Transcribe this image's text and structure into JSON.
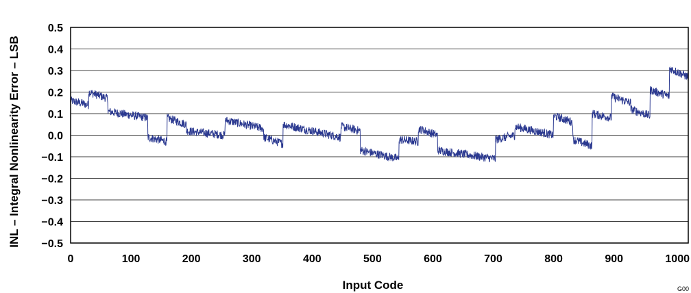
{
  "chart_data": {
    "type": "line",
    "title": "",
    "xlabel": "Input Code",
    "ylabel": "INL – Integral Nonlinearity Error – LSB",
    "xlim": [
      0,
      1023
    ],
    "ylim": [
      -0.5,
      0.5
    ],
    "xticks": [
      0,
      100,
      200,
      300,
      400,
      500,
      600,
      700,
      800,
      900,
      1000
    ],
    "xtick_labels": [
      "0",
      "100",
      "200",
      "300",
      "400",
      "500",
      "600",
      "700",
      "800",
      "900",
      "1000"
    ],
    "yticks": [
      -0.5,
      -0.4,
      -0.3,
      -0.2,
      -0.1,
      0.0,
      0.1,
      0.2,
      0.3,
      0.4,
      0.5
    ],
    "ytick_labels": [
      "−0.5",
      "−0.4",
      "−0.3",
      "−0.2",
      "−0.1",
      "0.0",
      "0.1",
      "0.2",
      "0.3",
      "0.4",
      "0.5"
    ],
    "grid": "horizontal",
    "legend": "none",
    "series_color": "#2b3990",
    "noise_amplitude": 0.02,
    "series": [
      {
        "segments": [
          {
            "x_start": 0,
            "x_end": 30,
            "y_start": 0.16,
            "y_end": 0.14
          },
          {
            "x_start": 30,
            "x_end": 62,
            "y_start": 0.2,
            "y_end": 0.17
          },
          {
            "x_start": 62,
            "x_end": 128,
            "y_start": 0.11,
            "y_end": 0.08
          },
          {
            "x_start": 128,
            "x_end": 160,
            "y_start": -0.01,
            "y_end": -0.03
          },
          {
            "x_start": 160,
            "x_end": 192,
            "y_start": 0.08,
            "y_end": 0.05
          },
          {
            "x_start": 192,
            "x_end": 256,
            "y_start": 0.02,
            "y_end": 0.0
          },
          {
            "x_start": 256,
            "x_end": 320,
            "y_start": 0.07,
            "y_end": 0.03
          },
          {
            "x_start": 320,
            "x_end": 352,
            "y_start": -0.01,
            "y_end": -0.04
          },
          {
            "x_start": 352,
            "x_end": 384,
            "y_start": 0.05,
            "y_end": 0.03
          },
          {
            "x_start": 384,
            "x_end": 448,
            "y_start": 0.03,
            "y_end": -0.01
          },
          {
            "x_start": 448,
            "x_end": 480,
            "y_start": 0.04,
            "y_end": 0.02
          },
          {
            "x_start": 480,
            "x_end": 544,
            "y_start": -0.07,
            "y_end": -0.11
          },
          {
            "x_start": 544,
            "x_end": 576,
            "y_start": -0.02,
            "y_end": -0.03
          },
          {
            "x_start": 576,
            "x_end": 608,
            "y_start": 0.03,
            "y_end": 0.0
          },
          {
            "x_start": 608,
            "x_end": 704,
            "y_start": -0.07,
            "y_end": -0.11
          },
          {
            "x_start": 704,
            "x_end": 736,
            "y_start": -0.02,
            "y_end": 0.0
          },
          {
            "x_start": 736,
            "x_end": 800,
            "y_start": 0.04,
            "y_end": 0.0
          },
          {
            "x_start": 800,
            "x_end": 832,
            "y_start": 0.09,
            "y_end": 0.06
          },
          {
            "x_start": 832,
            "x_end": 864,
            "y_start": -0.02,
            "y_end": -0.05
          },
          {
            "x_start": 864,
            "x_end": 896,
            "y_start": 0.1,
            "y_end": 0.08
          },
          {
            "x_start": 896,
            "x_end": 928,
            "y_start": 0.18,
            "y_end": 0.15
          },
          {
            "x_start": 928,
            "x_end": 960,
            "y_start": 0.12,
            "y_end": 0.09
          },
          {
            "x_start": 960,
            "x_end": 992,
            "y_start": 0.21,
            "y_end": 0.18
          },
          {
            "x_start": 992,
            "x_end": 1023,
            "y_start": 0.31,
            "y_end": 0.27
          }
        ]
      }
    ]
  },
  "figure_id": "G00"
}
